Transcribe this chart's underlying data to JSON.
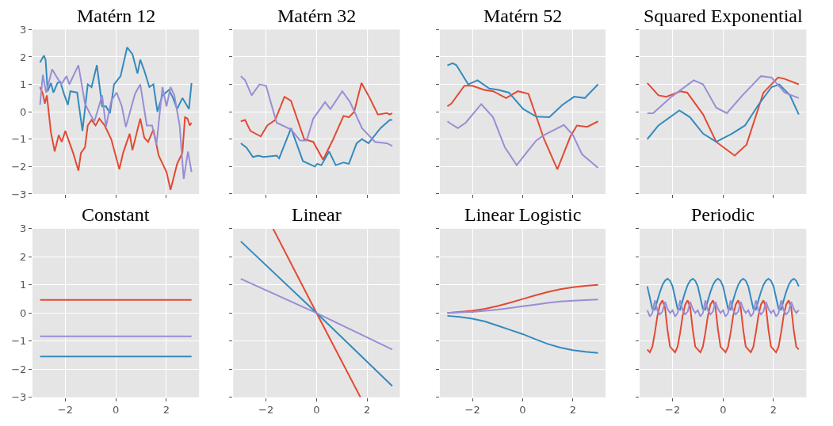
{
  "chart_data": [
    {
      "type": "line",
      "title": "Matérn 12",
      "xlim": [
        -3.3,
        3.3
      ],
      "xticks": [
        -2,
        0,
        2
      ],
      "ylim": [
        -3,
        3
      ],
      "yticks": [
        -3,
        -2,
        -1,
        0,
        1,
        2,
        3
      ],
      "grid": true,
      "tick_labels": "y",
      "series": [
        {
          "color": "#e24a33",
          "x": [
            -3,
            -2.89,
            -2.81,
            -2.73,
            -2.57,
            -2.42,
            -2.26,
            -2.14,
            -2.0,
            -1.69,
            -1.48,
            -1.38,
            -1.22,
            -1.11,
            -0.96,
            -0.8,
            -0.65,
            -0.44,
            -0.18,
            0.14,
            0.29,
            0.55,
            0.66,
            0.97,
            1.13,
            1.28,
            1.49,
            1.7,
            2.01,
            2.17,
            2.43,
            2.64,
            2.74,
            2.84,
            2.93,
            3.0
          ],
          "values": [
            0.9,
            0.65,
            0.3,
            0.6,
            -0.75,
            -1.45,
            -0.85,
            -1.1,
            -0.7,
            -1.5,
            -2.15,
            -1.5,
            -1.3,
            -0.5,
            -0.3,
            -0.5,
            -0.25,
            -0.5,
            -1.0,
            -2.1,
            -1.5,
            -0.8,
            -1.4,
            -0.25,
            -0.95,
            -1.1,
            -0.65,
            -1.6,
            -2.2,
            -2.85,
            -1.9,
            -1.5,
            -0.2,
            -0.25,
            -0.5,
            -0.4
          ]
        },
        {
          "color": "#348abd",
          "x": [
            -3,
            -2.85,
            -2.78,
            -2.7,
            -2.57,
            -2.47,
            -2.31,
            -2.2,
            -2.05,
            -1.9,
            -1.8,
            -1.53,
            -1.32,
            -1.11,
            -0.96,
            -0.75,
            -0.54,
            -0.39,
            -0.23,
            -0.07,
            0.19,
            0.45,
            0.66,
            0.86,
            0.97,
            1.13,
            1.33,
            1.49,
            1.65,
            1.85,
            2.11,
            2.27,
            2.43,
            2.64,
            2.9,
            3.0
          ],
          "values": [
            1.8,
            2.05,
            1.9,
            0.75,
            1.05,
            0.7,
            1.05,
            1.1,
            0.65,
            0.25,
            0.75,
            0.7,
            -0.7,
            1.0,
            0.9,
            1.7,
            0.2,
            0.2,
            -0.05,
            1.0,
            1.3,
            2.35,
            2.1,
            1.4,
            1.9,
            1.5,
            0.9,
            1.0,
            0.0,
            0.6,
            0.8,
            0.5,
            0.1,
            0.5,
            0.1,
            1.05
          ]
        },
        {
          "color": "#988ed5",
          "x": [
            -3,
            -2.89,
            -2.76,
            -2.52,
            -2.36,
            -2.16,
            -1.95,
            -1.84,
            -1.48,
            -1.22,
            -1.01,
            -0.85,
            -0.7,
            -0.54,
            -0.39,
            -0.18,
            0.03,
            0.24,
            0.4,
            0.76,
            0.97,
            1.23,
            1.44,
            1.61,
            1.85,
            2.01,
            2.17,
            2.32,
            2.53,
            2.69,
            2.86,
            3.0
          ],
          "values": [
            0.25,
            1.35,
            0.7,
            1.55,
            1.3,
            1.0,
            1.3,
            1.0,
            1.7,
            0.3,
            -0.1,
            -0.35,
            0.1,
            0.6,
            -0.55,
            0.4,
            0.7,
            0.2,
            -0.55,
            0.65,
            1.0,
            -0.5,
            -0.5,
            -1.2,
            0.9,
            0.2,
            0.9,
            0.6,
            -0.5,
            -2.45,
            -1.45,
            -2.2
          ]
        }
      ]
    },
    {
      "type": "line",
      "title": "Matérn 32",
      "xlim": [
        -3.3,
        3.3
      ],
      "xticks": [
        -2,
        0,
        2
      ],
      "ylim": [
        -3,
        3
      ],
      "yticks": [
        -3,
        -2,
        -1,
        0,
        1,
        2,
        3
      ],
      "grid": true,
      "tick_labels": false,
      "series": [
        {
          "color": "#e24a33",
          "x": [
            -3,
            -2.83,
            -2.62,
            -2.21,
            -1.95,
            -1.64,
            -1.27,
            -1.01,
            -0.49,
            -0.13,
            0.26,
            0.66,
            1.07,
            1.28,
            1.49,
            1.78,
            2.11,
            2.43,
            2.79,
            2.9,
            3.0
          ],
          "values": [
            -0.35,
            -0.3,
            -0.7,
            -0.9,
            -0.5,
            -0.3,
            0.55,
            0.4,
            -1.0,
            -1.1,
            -1.75,
            -1.0,
            -0.15,
            -0.2,
            0.0,
            1.05,
            0.5,
            -0.1,
            -0.05,
            -0.1,
            -0.05
          ]
        },
        {
          "color": "#348abd",
          "x": [
            -3,
            -2.78,
            -2.52,
            -2.31,
            -2.1,
            -1.58,
            -1.48,
            -1.01,
            -0.54,
            -0.07,
            0.03,
            0.19,
            0.5,
            0.76,
            1.07,
            1.28,
            1.59,
            1.8,
            2.06,
            2.53,
            2.9,
            3.0
          ],
          "values": [
            -1.15,
            -1.3,
            -1.65,
            -1.6,
            -1.65,
            -1.6,
            -1.7,
            -0.6,
            -1.8,
            -2.0,
            -1.9,
            -1.95,
            -1.45,
            -1.95,
            -1.85,
            -1.9,
            -1.15,
            -1.0,
            -1.15,
            -0.6,
            -0.3,
            -0.3
          ]
        },
        {
          "color": "#988ed5",
          "x": [
            -3,
            -2.83,
            -2.57,
            -2.26,
            -2.0,
            -1.58,
            -1.01,
            -0.65,
            -0.39,
            -0.13,
            0.34,
            0.55,
            1.02,
            1.33,
            1.8,
            2.32,
            2.79,
            3.0
          ],
          "values": [
            1.3,
            1.15,
            0.6,
            1.0,
            0.95,
            -0.4,
            -0.65,
            -1.05,
            -1.05,
            -0.25,
            0.35,
            0.1,
            0.75,
            0.35,
            -0.6,
            -1.1,
            -1.15,
            -1.25
          ]
        }
      ]
    },
    {
      "type": "line",
      "title": "Matérn 52",
      "xlim": [
        -3.3,
        3.3
      ],
      "xticks": [
        -2,
        0,
        2
      ],
      "ylim": [
        -3,
        3
      ],
      "yticks": [
        -3,
        -2,
        -1,
        0,
        1,
        2,
        3
      ],
      "grid": true,
      "tick_labels": false,
      "series": [
        {
          "color": "#e24a33",
          "x": [
            -3,
            -2.84,
            -2.32,
            -2.01,
            -1.54,
            -1.18,
            -0.66,
            -0.19,
            0.23,
            0.85,
            1.38,
            1.9,
            2.16,
            2.57,
            3.0
          ],
          "values": [
            0.2,
            0.3,
            0.95,
            0.95,
            0.8,
            0.75,
            0.5,
            0.75,
            0.65,
            -1.0,
            -2.1,
            -0.9,
            -0.5,
            -0.55,
            -0.35
          ]
        },
        {
          "color": "#348abd",
          "x": [
            -3,
            -2.79,
            -2.64,
            -2.17,
            -1.8,
            -1.33,
            -0.97,
            -0.55,
            0.02,
            0.54,
            1.06,
            1.58,
            2.05,
            2.47,
            3.0
          ],
          "values": [
            1.69,
            1.77,
            1.7,
            1.0,
            1.15,
            0.85,
            0.8,
            0.7,
            0.1,
            -0.18,
            -0.2,
            0.25,
            0.55,
            0.5,
            1.0
          ]
        },
        {
          "color": "#988ed5",
          "x": [
            -3,
            -2.84,
            -2.58,
            -2.27,
            -1.65,
            -1.18,
            -0.71,
            -0.24,
            0.23,
            0.54,
            0.85,
            1.17,
            1.64,
            2.0,
            2.36,
            3.0
          ],
          "values": [
            -0.35,
            -0.45,
            -0.6,
            -0.4,
            0.28,
            -0.2,
            -1.3,
            -1.95,
            -1.4,
            -1.05,
            -0.85,
            -0.7,
            -0.48,
            -0.85,
            -1.55,
            -2.05
          ]
        }
      ]
    },
    {
      "type": "line",
      "title": "Squared Exponential",
      "xlim": [
        -3.3,
        3.3
      ],
      "xticks": [
        -2,
        0,
        2
      ],
      "ylim": [
        -3,
        3
      ],
      "yticks": [
        -3,
        -2,
        -1,
        0,
        1,
        2,
        3
      ],
      "grid": true,
      "tick_labels": false,
      "series": [
        {
          "color": "#e24a33",
          "x": [
            -3,
            -2.56,
            -2.25,
            -1.68,
            -1.42,
            -0.79,
            -0.27,
            0.46,
            0.93,
            1.6,
            2.18,
            2.44,
            3.0
          ],
          "values": [
            1.05,
            0.6,
            0.55,
            0.75,
            0.7,
            -0.1,
            -1.1,
            -1.6,
            -1.2,
            0.7,
            1.25,
            1.2,
            1.0
          ]
        },
        {
          "color": "#348abd",
          "x": [
            -3,
            -2.56,
            -1.73,
            -1.31,
            -0.79,
            -0.27,
            0.35,
            0.87,
            1.4,
            1.92,
            2.23,
            2.65,
            3.0
          ],
          "values": [
            -1.0,
            -0.5,
            0.05,
            -0.2,
            -0.8,
            -1.1,
            -0.8,
            -0.5,
            0.25,
            0.9,
            1.0,
            0.6,
            -0.1
          ]
        },
        {
          "color": "#988ed5",
          "x": [
            -3,
            -2.77,
            -2.04,
            -1.16,
            -0.79,
            -0.27,
            0.15,
            0.77,
            1.5,
            1.92,
            2.44,
            3.0
          ],
          "values": [
            -0.05,
            -0.05,
            0.55,
            1.15,
            1.0,
            0.15,
            -0.05,
            0.6,
            1.3,
            1.25,
            0.7,
            0.5
          ]
        }
      ]
    },
    {
      "type": "line",
      "title": "Constant",
      "xlim": [
        -3.3,
        3.3
      ],
      "xticks": [
        -2,
        0,
        2
      ],
      "ylim": [
        -3,
        3
      ],
      "yticks": [
        -3,
        -2,
        -1,
        0,
        1,
        2,
        3
      ],
      "grid": true,
      "series": [
        {
          "color": "#e24a33",
          "x": [
            -3,
            3
          ],
          "values": [
            0.47,
            0.47
          ]
        },
        {
          "color": "#348abd",
          "x": [
            -3,
            3
          ],
          "values": [
            -1.55,
            -1.55
          ]
        },
        {
          "color": "#988ed5",
          "x": [
            -3,
            3
          ],
          "values": [
            -0.83,
            -0.83
          ]
        }
      ]
    },
    {
      "type": "line",
      "title": "Linear",
      "xlim": [
        -3.3,
        3.3
      ],
      "xticks": [
        -2,
        0,
        2
      ],
      "ylim": [
        -3,
        3
      ],
      "yticks": [
        -3,
        -2,
        -1,
        0,
        1,
        2,
        3
      ],
      "grid": true,
      "tick_labels": "x",
      "series": [
        {
          "color": "#e24a33",
          "x": [
            -1.72,
            0,
            1.74
          ],
          "values": [
            3,
            0,
            -3
          ]
        },
        {
          "color": "#348abd",
          "x": [
            -3,
            0,
            3
          ],
          "values": [
            2.55,
            0,
            -2.6
          ]
        },
        {
          "color": "#988ed5",
          "x": [
            -3,
            0,
            3
          ],
          "values": [
            1.22,
            0,
            -1.3
          ]
        }
      ]
    },
    {
      "type": "line",
      "title": "Linear Logistic",
      "xlim": [
        -3.3,
        3.3
      ],
      "xticks": [
        -2,
        0,
        2
      ],
      "ylim": [
        -3,
        3
      ],
      "yticks": [
        -3,
        -2,
        -1,
        0,
        1,
        2,
        3
      ],
      "grid": true,
      "tick_labels": "x",
      "series": [
        {
          "color": "#e24a33",
          "x": [
            -3,
            -2,
            -1.5,
            -1,
            -0.5,
            0,
            0.5,
            1,
            1.5,
            2,
            2.5,
            3
          ],
          "values": [
            0.0,
            0.08,
            0.15,
            0.25,
            0.37,
            0.5,
            0.63,
            0.75,
            0.85,
            0.92,
            0.97,
            1.0
          ]
        },
        {
          "color": "#348abd",
          "x": [
            -3,
            -2.5,
            -2,
            -1.5,
            -1,
            -0.5,
            0,
            0.5,
            1,
            1.5,
            2,
            2.5,
            3
          ],
          "values": [
            -0.1,
            -0.14,
            -0.2,
            -0.3,
            -0.45,
            -0.6,
            -0.75,
            -0.93,
            -1.1,
            -1.23,
            -1.32,
            -1.38,
            -1.42
          ]
        },
        {
          "color": "#988ed5",
          "x": [
            -3,
            -2.5,
            -2,
            -1.5,
            -1,
            -0.5,
            0,
            0.5,
            1,
            1.5,
            2,
            2.5,
            3
          ],
          "values": [
            0.0,
            0.02,
            0.04,
            0.08,
            0.12,
            0.18,
            0.24,
            0.3,
            0.36,
            0.41,
            0.44,
            0.46,
            0.48
          ]
        }
      ]
    },
    {
      "type": "line",
      "title": "Periodic",
      "xlim": [
        -3.3,
        3.3
      ],
      "xticks": [
        -2,
        0,
        2
      ],
      "ylim": [
        -3,
        3
      ],
      "yticks": [
        -3,
        -2,
        -1,
        0,
        1,
        2,
        3
      ],
      "grid": true,
      "tick_labels": "x",
      "series": [
        {
          "color": "#348abd",
          "x": [
            -3,
            -2.9,
            -2.8,
            -2.7,
            -2.6,
            -2.5,
            -2.4,
            -2.3,
            -2.2,
            -2.1,
            -2,
            -1.9,
            -1.8,
            -1.7,
            -1.6,
            -1.5,
            -1.4,
            -1.3,
            -1.2,
            -1.1,
            -1,
            -0.9,
            -0.8,
            -0.7,
            -0.6,
            -0.5,
            -0.4,
            -0.3,
            -0.2,
            -0.1,
            0,
            0.1,
            0.2,
            0.3,
            0.4,
            0.5,
            0.6,
            0.7,
            0.8,
            0.9,
            1,
            1.1,
            1.2,
            1.3,
            1.4,
            1.5,
            1.6,
            1.7,
            1.8,
            1.9,
            2,
            2.1,
            2.2,
            2.3,
            2.4,
            2.5,
            2.6,
            2.7,
            2.8,
            2.9,
            3
          ],
          "values": [
            0.95,
            0.55,
            0.15,
            0.12,
            0.45,
            0.75,
            1.0,
            1.15,
            1.22,
            1.15,
            0.95,
            0.55,
            0.15,
            0.12,
            0.45,
            0.75,
            1.0,
            1.15,
            1.22,
            1.15,
            0.95,
            0.55,
            0.15,
            0.12,
            0.45,
            0.75,
            1.0,
            1.15,
            1.22,
            1.15,
            0.95,
            0.55,
            0.15,
            0.12,
            0.45,
            0.75,
            1.0,
            1.15,
            1.22,
            1.15,
            0.95,
            0.55,
            0.15,
            0.12,
            0.45,
            0.75,
            1.0,
            1.15,
            1.22,
            1.15,
            0.95,
            0.55,
            0.15,
            0.12,
            0.45,
            0.75,
            1.0,
            1.15,
            1.22,
            1.15,
            0.95
          ]
        },
        {
          "color": "#e24a33",
          "x": [
            -3,
            -2.9,
            -2.8,
            -2.7,
            -2.6,
            -2.5,
            -2.4,
            -2.3,
            -2.2,
            -2.1,
            -2,
            -1.9,
            -1.8,
            -1.7,
            -1.6,
            -1.5,
            -1.4,
            -1.3,
            -1.2,
            -1.1,
            -1,
            -0.9,
            -0.8,
            -0.7,
            -0.6,
            -0.5,
            -0.4,
            -0.3,
            -0.2,
            -0.1,
            0,
            0.1,
            0.2,
            0.3,
            0.4,
            0.5,
            0.6,
            0.7,
            0.8,
            0.9,
            1,
            1.1,
            1.2,
            1.3,
            1.4,
            1.5,
            1.6,
            1.7,
            1.8,
            1.9,
            2,
            2.1,
            2.2,
            2.3,
            2.4,
            2.5,
            2.6,
            2.7,
            2.8,
            2.9,
            3
          ],
          "values": [
            -1.3,
            -1.4,
            -1.2,
            -0.7,
            -0.1,
            0.3,
            0.45,
            0.2,
            -0.6,
            -1.2,
            -1.3,
            -1.4,
            -1.2,
            -0.7,
            -0.1,
            0.3,
            0.45,
            0.2,
            -0.6,
            -1.2,
            -1.3,
            -1.4,
            -1.2,
            -0.7,
            -0.1,
            0.3,
            0.45,
            0.2,
            -0.6,
            -1.2,
            -1.3,
            -1.4,
            -1.2,
            -0.7,
            -0.1,
            0.3,
            0.45,
            0.2,
            -0.6,
            -1.2,
            -1.3,
            -1.4,
            -1.2,
            -0.7,
            -0.1,
            0.3,
            0.45,
            0.2,
            -0.6,
            -1.2,
            -1.3,
            -1.4,
            -1.2,
            -0.7,
            -0.1,
            0.3,
            0.45,
            0.2,
            -0.6,
            -1.2,
            -1.3
          ]
        },
        {
          "color": "#988ed5",
          "x": [
            -3,
            -2.9,
            -2.8,
            -2.7,
            -2.6,
            -2.5,
            -2.4,
            -2.3,
            -2.2,
            -2.1,
            -2,
            -1.9,
            -1.8,
            -1.7,
            -1.6,
            -1.5,
            -1.4,
            -1.3,
            -1.2,
            -1.1,
            -1,
            -0.9,
            -0.8,
            -0.7,
            -0.6,
            -0.5,
            -0.4,
            -0.3,
            -0.2,
            -0.1,
            0,
            0.1,
            0.2,
            0.3,
            0.4,
            0.5,
            0.6,
            0.7,
            0.8,
            0.9,
            1,
            1.1,
            1.2,
            1.3,
            1.4,
            1.5,
            1.6,
            1.7,
            1.8,
            1.9,
            2,
            2.1,
            2.2,
            2.3,
            2.4,
            2.5,
            2.6,
            2.7,
            2.8,
            2.9,
            3
          ],
          "values": [
            0.1,
            -0.12,
            0.0,
            0.45,
            0.1,
            -0.05,
            0.05,
            0.4,
            0.15,
            0.0,
            0.1,
            -0.12,
            0.0,
            0.45,
            0.1,
            -0.05,
            0.05,
            0.4,
            0.15,
            0.0,
            0.1,
            -0.12,
            0.0,
            0.45,
            0.1,
            -0.05,
            0.05,
            0.4,
            0.15,
            0.0,
            0.1,
            -0.12,
            0.0,
            0.45,
            0.1,
            -0.05,
            0.05,
            0.4,
            0.15,
            0.0,
            0.1,
            -0.12,
            0.0,
            0.45,
            0.1,
            -0.05,
            0.05,
            0.4,
            0.15,
            0.0,
            0.1,
            -0.12,
            0.0,
            0.45,
            0.1,
            -0.05,
            0.05,
            0.4,
            0.15,
            0.0,
            0.1
          ]
        }
      ]
    }
  ]
}
